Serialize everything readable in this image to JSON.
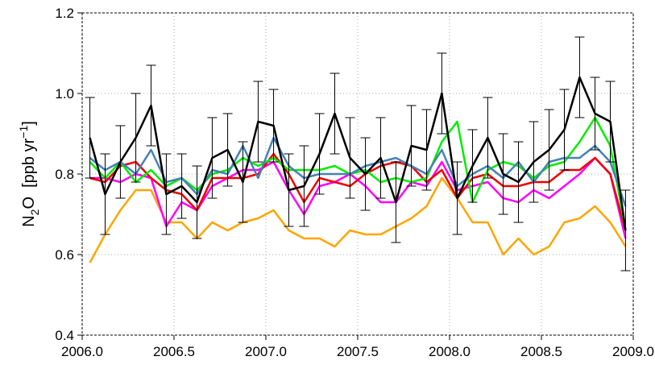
{
  "chart_data": {
    "type": "line",
    "ylabel": [
      "N",
      "2",
      "O  [ppb yr",
      "−1",
      "]"
    ],
    "x": [
      2006.042,
      2006.125,
      2006.208,
      2006.292,
      2006.375,
      2006.458,
      2006.542,
      2006.625,
      2006.708,
      2006.792,
      2006.875,
      2006.958,
      2007.042,
      2007.125,
      2007.208,
      2007.292,
      2007.375,
      2007.458,
      2007.542,
      2007.625,
      2007.708,
      2007.792,
      2007.875,
      2007.958,
      2008.042,
      2008.125,
      2008.208,
      2008.292,
      2008.375,
      2008.458,
      2008.542,
      2008.625,
      2008.708,
      2008.792,
      2008.875,
      2008.958
    ],
    "series": [
      {
        "color": "#ffa500",
        "values": [
          0.58,
          0.65,
          0.71,
          0.76,
          0.76,
          0.68,
          0.68,
          0.64,
          0.68,
          0.66,
          0.68,
          0.69,
          0.71,
          0.66,
          0.64,
          0.64,
          0.62,
          0.66,
          0.65,
          0.65,
          0.67,
          0.69,
          0.72,
          0.79,
          0.74,
          0.68,
          0.68,
          0.6,
          0.64,
          0.6,
          0.62,
          0.68,
          0.69,
          0.72,
          0.68,
          0.62
        ]
      },
      {
        "color": "#ff00ff",
        "values": [
          0.79,
          0.79,
          0.78,
          0.8,
          0.79,
          0.67,
          0.73,
          0.71,
          0.77,
          0.79,
          0.81,
          0.81,
          0.83,
          0.76,
          0.7,
          0.77,
          0.78,
          0.8,
          0.77,
          0.73,
          0.73,
          0.78,
          0.77,
          0.83,
          0.76,
          0.77,
          0.78,
          0.74,
          0.73,
          0.76,
          0.74,
          0.77,
          0.8,
          0.84,
          0.8,
          0.64
        ]
      },
      {
        "color": "#ee0000",
        "values": [
          0.79,
          0.78,
          0.82,
          0.83,
          0.79,
          0.76,
          0.75,
          0.71,
          0.79,
          0.79,
          0.79,
          0.8,
          0.85,
          0.8,
          0.73,
          0.79,
          0.78,
          0.77,
          0.8,
          0.82,
          0.83,
          0.82,
          0.78,
          0.81,
          0.74,
          0.79,
          0.8,
          0.77,
          0.77,
          0.78,
          0.78,
          0.81,
          0.81,
          0.84,
          0.8,
          0.66
        ]
      },
      {
        "color": "#00ee00",
        "values": [
          0.83,
          0.79,
          0.83,
          0.78,
          0.81,
          0.77,
          0.79,
          0.76,
          0.8,
          0.81,
          0.84,
          0.82,
          0.84,
          0.81,
          0.81,
          0.81,
          0.82,
          0.8,
          0.81,
          0.78,
          0.79,
          0.78,
          0.79,
          0.88,
          0.93,
          0.73,
          0.81,
          0.83,
          0.82,
          0.79,
          0.82,
          0.83,
          0.88,
          0.94,
          0.87,
          0.66
        ]
      },
      {
        "color": "#4682b4",
        "values": [
          0.84,
          0.81,
          0.83,
          0.8,
          0.86,
          0.78,
          0.79,
          0.75,
          0.81,
          0.8,
          0.87,
          0.79,
          0.89,
          0.82,
          0.79,
          0.8,
          0.8,
          0.8,
          0.82,
          0.83,
          0.84,
          0.82,
          0.8,
          0.86,
          0.77,
          0.8,
          0.82,
          0.79,
          0.83,
          0.78,
          0.83,
          0.84,
          0.84,
          0.87,
          0.83,
          0.72
        ]
      },
      {
        "color": "#000000",
        "values": [
          0.89,
          0.75,
          0.83,
          0.89,
          0.97,
          0.75,
          0.77,
          0.73,
          0.84,
          0.86,
          0.78,
          0.93,
          0.92,
          0.76,
          0.77,
          0.85,
          0.95,
          0.84,
          0.8,
          0.84,
          0.73,
          0.87,
          0.86,
          1.0,
          0.74,
          0.82,
          0.89,
          0.8,
          0.78,
          0.83,
          0.86,
          0.91,
          1.04,
          0.95,
          0.93,
          0.66
        ],
        "errors": [
          0.1,
          0.1,
          0.09,
          0.11,
          0.1,
          0.1,
          0.08,
          0.09,
          0.1,
          0.09,
          0.1,
          0.1,
          0.09,
          0.09,
          0.1,
          0.1,
          0.1,
          0.1,
          0.09,
          0.1,
          0.1,
          0.1,
          0.1,
          0.1,
          0.09,
          0.09,
          0.1,
          0.1,
          0.1,
          0.1,
          0.1,
          0.1,
          0.1,
          0.09,
          0.1,
          0.1
        ]
      }
    ],
    "xlim": [
      2006,
      2009
    ],
    "xticks": [
      {
        "value": 2006,
        "label": "2006.0"
      },
      2006.5,
      {
        "value": 2007,
        "label": "2007.0"
      },
      2007.5,
      {
        "value": 2008,
        "label": "2008.0"
      },
      2008.5,
      {
        "value": 2009,
        "label": "2009.0"
      }
    ],
    "ylim": [
      0.4,
      1.2
    ],
    "yticks": [
      0.4,
      0.6,
      0.8,
      {
        "value": 1,
        "label": "1.0"
      },
      1.2
    ],
    "grid": true
  }
}
